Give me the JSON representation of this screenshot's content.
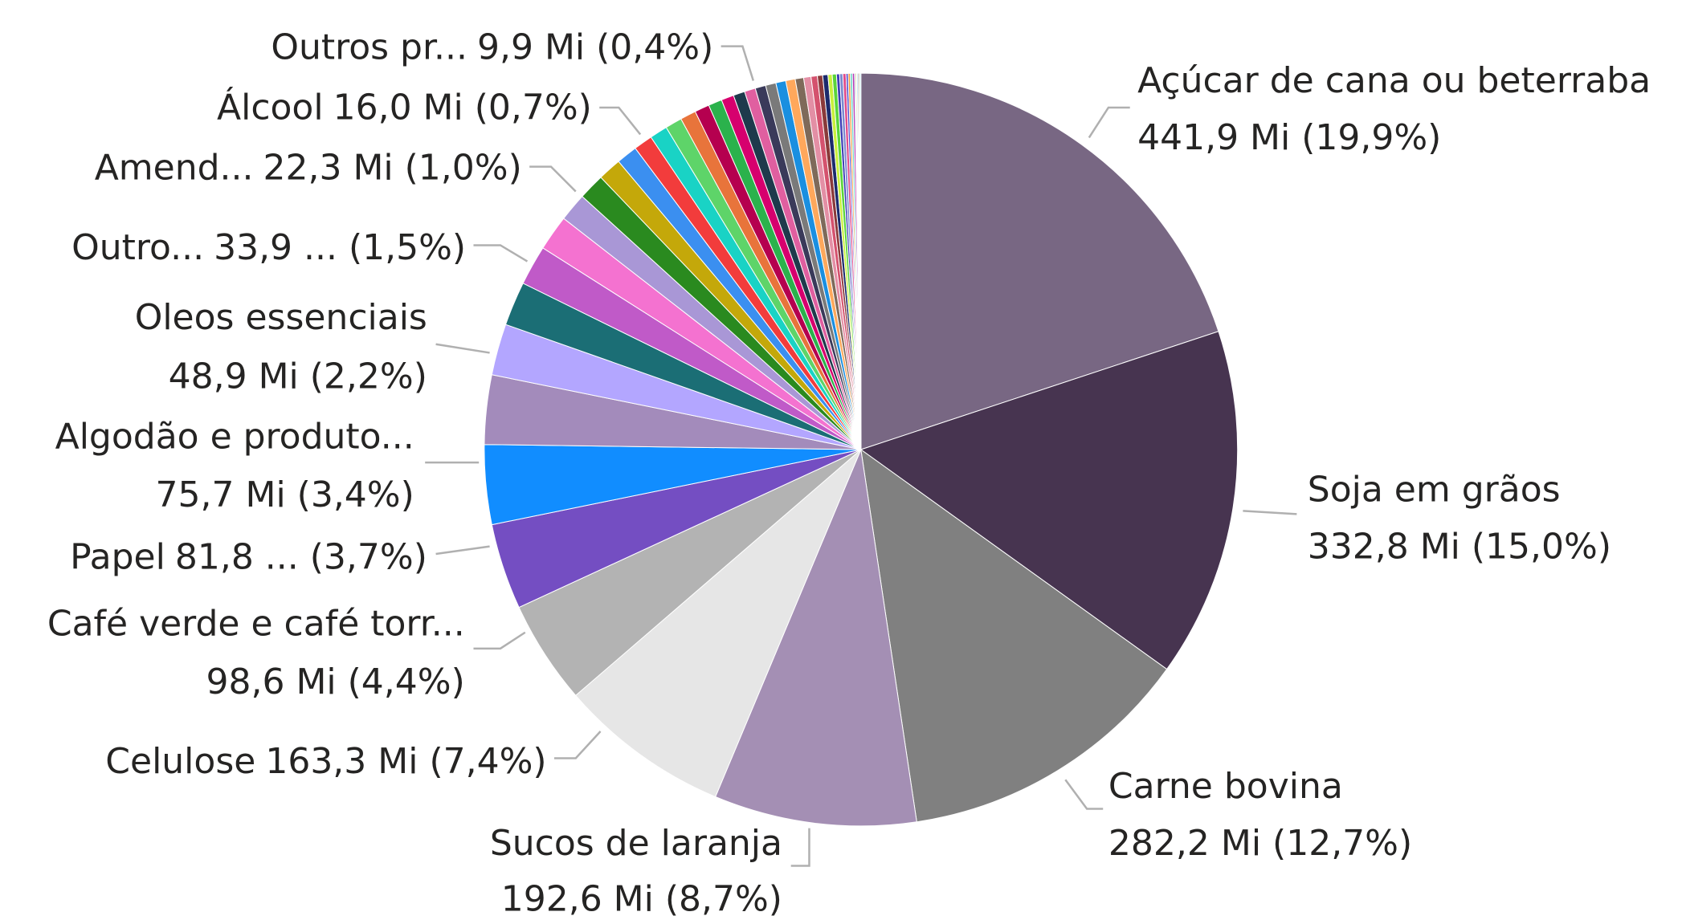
{
  "chart_data": {
    "type": "pie",
    "categories": [
      "Açúcar de cana ou beterraba",
      "Soja em grãos",
      "Carne bovina",
      "Sucos de laranja",
      "Celulose",
      "Café verde e café torr...",
      "Papel",
      "Algodão e produto...",
      null,
      "Oleos essenciais",
      null,
      null,
      "Outro...",
      null,
      null,
      "Amend...",
      null,
      null,
      null,
      "Álcool",
      null,
      null,
      null,
      null,
      null,
      null,
      null,
      "Outros pr...",
      null,
      null,
      null,
      null,
      null,
      null,
      null,
      null,
      null,
      null,
      null,
      null,
      null,
      null,
      null,
      null,
      null,
      null,
      null,
      null,
      null,
      null
    ],
    "values": [
      441.9,
      332.8,
      282.2,
      192.6,
      163.3,
      98.6,
      81.8,
      75.7,
      66,
      48.9,
      42,
      38,
      33.9,
      27,
      25,
      22.3,
      20,
      18,
      17,
      16.0,
      15,
      14,
      13,
      12,
      11,
      10.5,
      10,
      9.9,
      9.5,
      9,
      8,
      7,
      6,
      5,
      5,
      4,
      4,
      3,
      3,
      3,
      2,
      2,
      2,
      2,
      1,
      1,
      1,
      1,
      1,
      1
    ],
    "value_labels": [
      "441,9 Mi (19,9%)",
      "332,8 Mi (15,0%)",
      "282,2 Mi (12,7%)",
      "192,6 Mi (8,7%)",
      "163,3 Mi (7,4%)",
      "98,6 Mi (4,4%)",
      "81,8 ... (3,7%)",
      "75,7 Mi (3,4%)",
      null,
      "48,9 Mi (2,2%)",
      null,
      null,
      "33,9 ... (1,5%)",
      null,
      null,
      "22,3 Mi (1,0%)",
      null,
      null,
      null,
      "16,0 Mi (0,7%)",
      null,
      null,
      null,
      null,
      null,
      null,
      null,
      "9,9 Mi (0,4%)",
      null,
      null,
      null,
      null,
      null,
      null,
      null,
      null,
      null,
      null,
      null,
      null,
      null,
      null,
      null,
      null,
      null,
      null,
      null,
      null,
      null,
      null
    ],
    "colors": [
      "#786783",
      "#473450",
      "#808080",
      "#a48fb4",
      "#e6e6e6",
      "#b3b3b3",
      "#744ec2",
      "#118dff",
      "#a38bbb",
      "#b3a6ff",
      "#1b6e75",
      "#c05ac8",
      "#f472d0",
      "#a997d6",
      "#2a8a1f",
      "#c4a80a",
      "#3b8ff0",
      "#f23c3c",
      "#19d3c5",
      "#5ed469",
      "#e8743b",
      "#b5004f",
      "#2bb24c",
      "#d6006e",
      "#1e3a4c",
      "#e05fa0",
      "#3a3a5a",
      "#7a7a7a",
      "#1a8fe0",
      "#ffa85c",
      "#7e6a5a",
      "#e38fa5",
      "#d4526e",
      "#8a3a3a",
      "#1c2b6c",
      "#c9f03c",
      "#5ad43a",
      "#3c3cb4",
      "#7a8ad0",
      "#e04a8a",
      "#4a4ad0",
      "#ff9a3a",
      "#6ad4c4",
      "#b43ab4",
      "#2a6a9a",
      "#f0c43a",
      "#3ab4f0",
      "#a03a3a",
      "#5a9a5a",
      "#8adce0"
    ]
  }
}
